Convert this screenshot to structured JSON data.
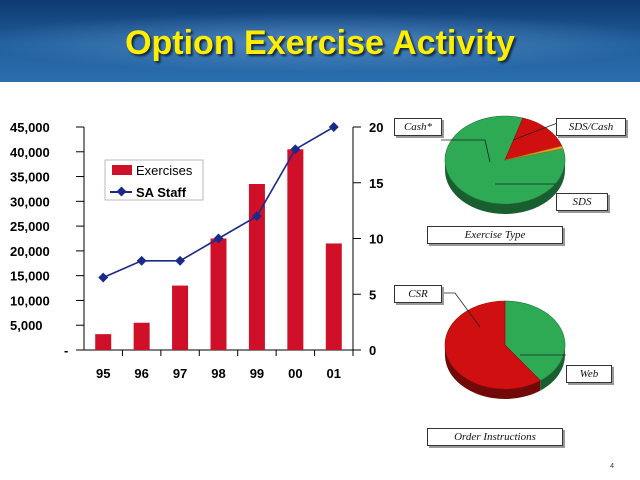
{
  "title": "Option Exercise Activity",
  "page_number": "4",
  "chart_data": [
    {
      "type": "bar+line",
      "categories": [
        "95",
        "96",
        "97",
        "98",
        "99",
        "00",
        "01"
      ],
      "series": [
        {
          "name": "Exercises",
          "axis": "left",
          "kind": "bar",
          "color": "#d01028",
          "values": [
            3200,
            5500,
            13000,
            22500,
            33500,
            40500,
            21500
          ]
        },
        {
          "name": "SA Staff",
          "axis": "right",
          "kind": "line",
          "color": "#1a2a8a",
          "values": [
            6.5,
            8,
            8,
            10,
            12,
            18,
            20
          ]
        }
      ],
      "left_ticks": [
        "45,000",
        "40,000",
        "35,000",
        "30,000",
        "25,000",
        "20,000",
        "15,000",
        "10,000",
        "5,000",
        "-"
      ],
      "right_ticks": [
        "20",
        "15",
        "10",
        "5",
        "0"
      ],
      "left_ylim": [
        0,
        45000
      ],
      "right_ylim": [
        0,
        20
      ],
      "legend": [
        "Exercises",
        "SA Staff"
      ]
    },
    {
      "type": "pie",
      "title": "Exercise Type",
      "slices": [
        {
          "label": "SDS",
          "value": 84,
          "color": "#2eaa55"
        },
        {
          "label": "Cash*",
          "value": 15,
          "color": "#d01010"
        },
        {
          "label": "SDS/Cash",
          "value": 1,
          "color": "#e8a020"
        }
      ]
    },
    {
      "type": "pie",
      "title": "Order Instructions",
      "slices": [
        {
          "label": "Web",
          "value": 40,
          "color": "#2eaa55"
        },
        {
          "label": "CSR",
          "value": 60,
          "color": "#d01010"
        }
      ]
    }
  ]
}
